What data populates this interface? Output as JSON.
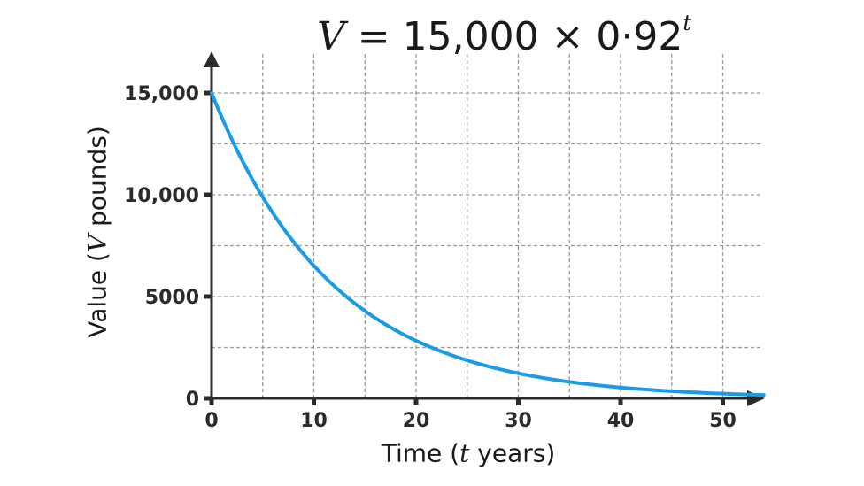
{
  "title": {
    "lhs": "V",
    "equals": " = ",
    "rhs": "15,000 × 0·92",
    "exponent": "t"
  },
  "axes": {
    "ylabel_prefix": "Value (",
    "ylabel_var": "V",
    "ylabel_suffix": " pounds)",
    "xlabel_prefix": "Time (",
    "xlabel_var": "t",
    "xlabel_suffix": " years)"
  },
  "colors": {
    "curve": "#1a9be6",
    "axis": "#2b2b2b",
    "grid": "#9a9a9a"
  },
  "chart_data": {
    "type": "line",
    "title": "V = 15,000 × 0·92^t",
    "xlabel": "Time (t years)",
    "ylabel": "Value (V pounds)",
    "xlim": [
      0,
      54
    ],
    "ylim": [
      0,
      16500
    ],
    "x_ticks": [
      0,
      10,
      20,
      30,
      40,
      50
    ],
    "x_tick_labels": [
      "0",
      "10",
      "20",
      "30",
      "40",
      "50"
    ],
    "y_ticks": [
      0,
      5000,
      10000,
      15000
    ],
    "y_tick_labels": [
      "0",
      "5000",
      "10,000",
      "15,000"
    ],
    "grid": true,
    "grid_x_step": 5,
    "grid_y_step": 2500,
    "grid_style": "dashed",
    "legend": null,
    "series": [
      {
        "name": "V = 15000 × 0.92^t",
        "x": [
          0,
          5,
          10,
          15,
          20,
          25,
          30,
          35,
          40,
          45,
          50,
          54
        ],
        "values": [
          15000,
          9886,
          6516,
          4294,
          2830,
          1865,
          1229,
          810,
          534,
          352,
          232,
          166
        ]
      }
    ]
  }
}
